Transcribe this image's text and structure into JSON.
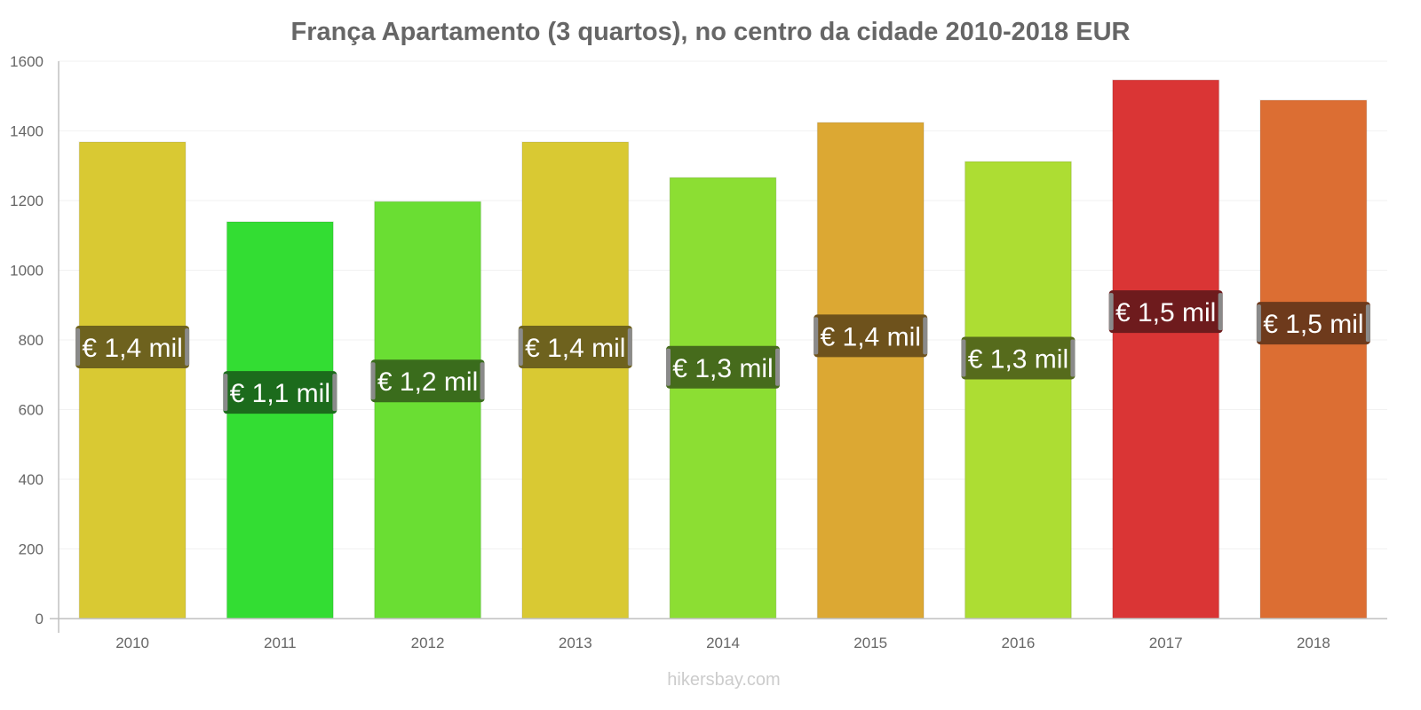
{
  "chart_data": {
    "type": "bar",
    "title": "França Apartamento (3 quartos), no centro da cidade 2010-2018 EUR",
    "xlabel": "",
    "ylabel": "",
    "ylim": [
      0,
      1600
    ],
    "yticks": [
      0,
      200,
      400,
      600,
      800,
      1000,
      1200,
      1400,
      1600
    ],
    "ytick_labels": [
      "0",
      "200",
      "400",
      "600",
      "800",
      "1000",
      "1200",
      "1400",
      "1600"
    ],
    "grid": true,
    "legend": "none",
    "categories": [
      "2010",
      "2011",
      "2012",
      "2013",
      "2014",
      "2015",
      "2016",
      "2017",
      "2018"
    ],
    "values": [
      1368,
      1139,
      1197,
      1368,
      1266,
      1424,
      1312,
      1546,
      1488
    ],
    "data_labels": [
      "€ 1,4 mil",
      "€ 1,1 mil",
      "€ 1,2 mil",
      "€ 1,4 mil",
      "€ 1,3 mil",
      "€ 1,4 mil",
      "€ 1,3 mil",
      "€ 1,5 mil",
      "€ 1,5 mil"
    ],
    "bar_colors": [
      "#d9c933",
      "#33dd33",
      "#6ade33",
      "#d9c933",
      "#8cde33",
      "#dca833",
      "#addd33",
      "#da3535",
      "#dc6e33"
    ],
    "label_bg_colors": [
      "#6e621e",
      "#1c6b1c",
      "#3a6c1c",
      "#6e621e",
      "#466b1c",
      "#6e521c",
      "#566b1c",
      "#6e1b1d",
      "#6e3a1c"
    ],
    "watermark": "hikersbay.com"
  }
}
